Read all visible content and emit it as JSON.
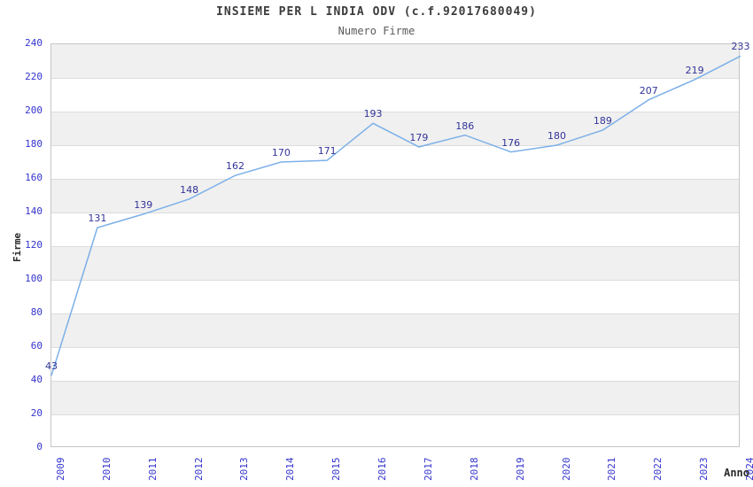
{
  "header": {
    "title": "INSIEME PER L INDIA ODV (c.f.92017680049)",
    "subtitle": "Numero Firme"
  },
  "chart_data": {
    "type": "line",
    "title": "INSIEME PER L INDIA ODV (c.f.92017680049)",
    "subtitle": "Numero Firme",
    "xlabel": "Anno",
    "ylabel": "Firme",
    "x": [
      2009,
      2010,
      2011,
      2012,
      2013,
      2014,
      2015,
      2016,
      2017,
      2018,
      2019,
      2020,
      2021,
      2022,
      2023,
      2024
    ],
    "series": [
      {
        "name": "Numero Firme",
        "values": [
          43,
          131,
          139,
          148,
          162,
          170,
          171,
          193,
          179,
          186,
          176,
          180,
          189,
          207,
          219,
          233
        ]
      }
    ],
    "ylim": [
      0,
      240
    ],
    "ytick_step": 20,
    "grid": true,
    "banding": "alternating-horizontal-from-top",
    "legend": "none",
    "colors": {
      "line": "#7cb0e8",
      "point_label": "#333399",
      "tick_label": "#3333cc",
      "band": "#f0f0f0",
      "gridline": "#dcdcdc",
      "plot_border": "#c6c6c6",
      "title": "#3c3c3c",
      "subtitle": "#5a5a5a",
      "axis_label": "#2a2a2a",
      "background": "#ffffff"
    }
  }
}
